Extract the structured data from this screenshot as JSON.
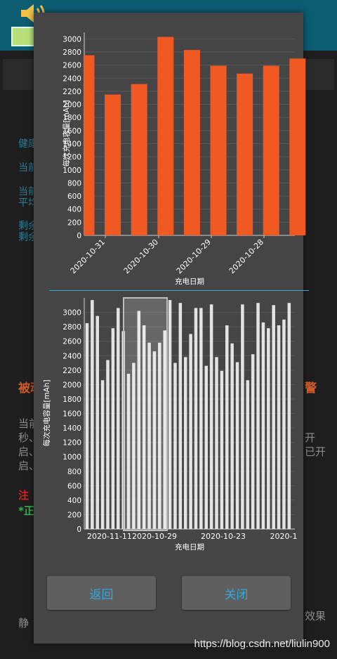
{
  "background": {
    "labels": [
      "健康",
      "当前",
      "当前",
      "平均",
      "剩余",
      "剩余",
      "被动",
      "警",
      "当前",
      "秒、",
      "启、",
      "启、",
      "注",
      "*正",
      "静",
      "开",
      "已开",
      "效果"
    ]
  },
  "dialog": {
    "back_label": "返回",
    "close_label": "关闭"
  },
  "watermark": "https://blog.csdn.net/liulin900",
  "chart_data": [
    {
      "type": "bar",
      "xlabel": "充电日期",
      "ylabel": "每次充电容量[mAh]",
      "ylim": [
        0,
        3100
      ],
      "yticks": [
        0,
        200,
        400,
        600,
        800,
        1000,
        1200,
        1400,
        1600,
        1800,
        2000,
        2200,
        2400,
        2600,
        2800,
        3000
      ],
      "tick_labels": [
        "2020-10-31",
        "2020-10-30",
        "2020-10-29",
        "2020-10-28"
      ],
      "values": [
        2750,
        2150,
        2310,
        3030,
        2830,
        2590,
        2470,
        2590,
        2700
      ],
      "bar_color": "#f05a22"
    },
    {
      "type": "bar",
      "xlabel": "充电日期",
      "ylabel": "每次充电容量[mAh]",
      "ylim": [
        0,
        3200
      ],
      "yticks": [
        0,
        200,
        400,
        600,
        800,
        1000,
        1200,
        1400,
        1600,
        1800,
        2000,
        2200,
        2400,
        2600,
        2800,
        3000
      ],
      "tick_labels": [
        "2020-11-11",
        "2020-10-29",
        "2020-10-23",
        "2020-1"
      ],
      "values": [
        2850,
        3170,
        2950,
        2060,
        2340,
        2780,
        3060,
        2740,
        2150,
        2300,
        3020,
        2820,
        2580,
        2460,
        2580,
        2750,
        3170,
        2300,
        3130,
        2380,
        2700,
        3060,
        3060,
        2260,
        3110,
        2380,
        2190,
        2820,
        2570,
        2310,
        3110,
        2060,
        2420,
        3130,
        2860,
        2780,
        3100,
        2820,
        2900,
        3130
      ],
      "bar_color": "#e3e3e3"
    }
  ]
}
